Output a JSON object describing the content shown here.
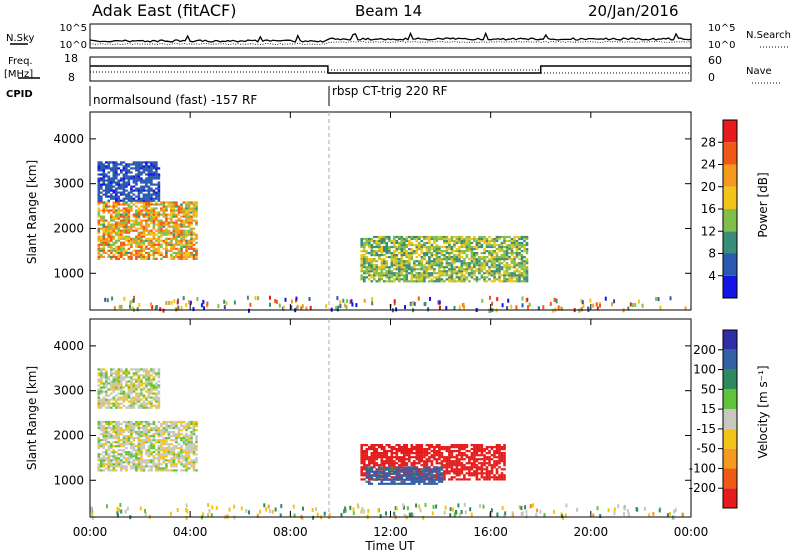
{
  "header": {
    "radar": "Adak East (fitACF)",
    "beam": "Beam 14",
    "date": "20/Jan/2016"
  },
  "noise_panel": {
    "left_label": "N.Sky",
    "right_label": "N.Search",
    "left_ticks": [
      "10^5",
      "10^0"
    ],
    "right_ticks": [
      "10^5",
      "10^0"
    ]
  },
  "freq_panel": {
    "left_label_1": "Freq.",
    "left_label_2": "[MHz]",
    "right_label": "Nave",
    "left_ticks": [
      "18",
      "8"
    ],
    "right_ticks": [
      "60",
      "0"
    ]
  },
  "cpid_panel": {
    "label": "CPID",
    "segments": [
      {
        "label": "normalsound (fast) -157 RF",
        "start_hour": 0,
        "end_hour": 9.5
      },
      {
        "label": "rbsp CT-trig 220 RF",
        "start_hour": 9.5,
        "end_hour": 24
      }
    ]
  },
  "time_axis": {
    "label": "Time UT",
    "tick_labels": [
      "00:00",
      "04:00",
      "08:00",
      "12:00",
      "16:00",
      "20:00",
      "00:00"
    ]
  },
  "power_panel": {
    "ylabel": "Slant Range [km]",
    "ytick_labels": [
      "1000",
      "2000",
      "3000",
      "4000"
    ],
    "colorbar_label": "Power [dB]",
    "colorbar_ticks": [
      "4",
      "8",
      "12",
      "16",
      "20",
      "24",
      "28"
    ]
  },
  "velocity_panel": {
    "ylabel": "Slant Range [km]",
    "ytick_labels": [
      "1000",
      "2000",
      "3000",
      "4000"
    ],
    "colorbar_label": "Velocity [m s⁻¹]",
    "colorbar_ticks": [
      "200",
      "100",
      "50",
      "15",
      "-15",
      "-50",
      "-100",
      "-200"
    ]
  },
  "chart_data": [
    {
      "type": "heatmap",
      "title": "Power",
      "xlabel": "Time UT",
      "ylabel": "Slant Range [km]",
      "xlim_hours": [
        0,
        24
      ],
      "ylim_km": [
        180,
        4600
      ],
      "colorbar_range_db": [
        0,
        32
      ],
      "regions": [
        {
          "t0": 0.3,
          "t1": 4.3,
          "r0": 1300,
          "r1": 2600,
          "peak_db": 28
        },
        {
          "t0": 0.3,
          "t1": 2.8,
          "r0": 2600,
          "r1": 3500,
          "peak_db": 8
        },
        {
          "t0": 10.8,
          "t1": 17.5,
          "r0": 800,
          "r1": 1800,
          "peak_db": 20
        }
      ],
      "dashed_marker_hour": 9.5
    },
    {
      "type": "heatmap",
      "title": "Velocity",
      "xlabel": "Time UT",
      "ylabel": "Slant Range [km]",
      "xlim_hours": [
        0,
        24
      ],
      "ylim_km": [
        180,
        4600
      ],
      "colorbar_range_ms": [
        -250,
        250
      ],
      "regions": [
        {
          "t0": 0.3,
          "t1": 4.3,
          "r0": 1200,
          "r1": 2300,
          "velocity": 0
        },
        {
          "t0": 0.3,
          "t1": 2.8,
          "r0": 2600,
          "r1": 3500,
          "velocity": 0
        },
        {
          "t0": 10.8,
          "t1": 16.5,
          "r0": 1000,
          "r1": 1800,
          "velocity": -200
        },
        {
          "t0": 11.0,
          "t1": 14.0,
          "r0": 900,
          "r1": 1300,
          "velocity": 100
        }
      ],
      "dashed_marker_hour": 9.5
    }
  ]
}
